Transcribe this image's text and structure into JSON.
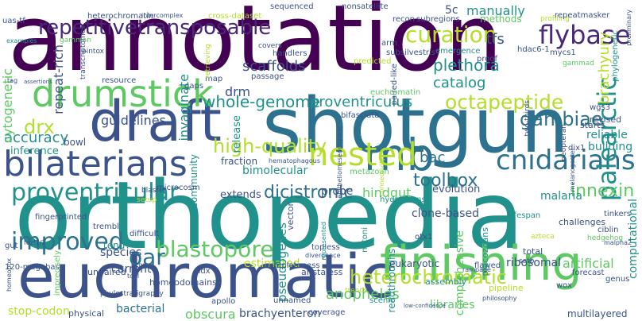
{
  "palette": {
    "c1": "#440154",
    "c2": "#3b528b",
    "c3": "#21918c",
    "c4": "#5ec962",
    "c5": "#b5de2b",
    "c6": "#2c728e",
    "c7": "#482878"
  },
  "words": [
    {
      "text": "annotation",
      "color": "#440154"
    },
    {
      "text": "orthopedia",
      "color": "#21918c"
    },
    {
      "text": "shotgun",
      "color": "#2c728e"
    },
    {
      "text": "draft",
      "color": "#3b528b"
    },
    {
      "text": "euchromatic",
      "color": "#3b528b"
    },
    {
      "text": "finishing",
      "color": "#5ec962"
    },
    {
      "text": "drumstick",
      "color": "#5ec962"
    },
    {
      "text": "bilaterians",
      "color": "#3b528b"
    },
    {
      "text": "mb",
      "color": "#2c728e"
    },
    {
      "text": "nested",
      "color": "#b5de2b"
    },
    {
      "text": "cnidarians",
      "color": "#2c728e"
    },
    {
      "text": "repetitivetransposable",
      "color": "#482878"
    },
    {
      "text": "curation",
      "color": "#b5de2b"
    },
    {
      "text": "flybase",
      "color": "#482878"
    },
    {
      "text": "proventricular",
      "color": "#21918c"
    },
    {
      "text": "palearctic",
      "color": "#21918c"
    },
    {
      "text": "gambiae",
      "color": "#2c728e"
    },
    {
      "text": "high-quality",
      "color": "#b5de2b"
    },
    {
      "text": "octapeptide",
      "color": "#b5de2b"
    },
    {
      "text": "improved",
      "color": "#2c728e"
    },
    {
      "text": "blastopore",
      "color": "#5ec962"
    },
    {
      "text": "heterochromatic",
      "color": "#b5de2b"
    },
    {
      "text": "oar",
      "color": "#2c728e"
    },
    {
      "text": "toolbox",
      "color": "#2c728e"
    },
    {
      "text": "dicistronic",
      "color": "#2c728e"
    },
    {
      "text": "innexin",
      "color": "#5ec962"
    },
    {
      "text": "whole-genome",
      "color": "#21918c"
    },
    {
      "text": "proventriculus",
      "color": "#21918c"
    },
    {
      "text": "accuracy",
      "color": "#21918c"
    },
    {
      "text": "scaffolds",
      "color": "#3b528b"
    },
    {
      "text": "plethora",
      "color": "#21918c"
    },
    {
      "text": "catalog",
      "color": "#21918c"
    },
    {
      "text": "drx",
      "color": "#b5de2b"
    },
    {
      "text": "drm",
      "color": "#3b528b"
    },
    {
      "text": "tfs",
      "color": "#3b528b"
    },
    {
      "text": "invaginate",
      "color": "#21918c"
    },
    {
      "text": "cytogenetic",
      "color": "#5ec962"
    },
    {
      "text": "repeat-rich",
      "color": "#3b528b"
    },
    {
      "text": "brachyury",
      "color": "#b5de2b"
    },
    {
      "text": "manually",
      "color": "#21918c"
    },
    {
      "text": "methods",
      "color": "#5ec962"
    },
    {
      "text": "5c",
      "color": "#3b528b"
    },
    {
      "text": "bac",
      "color": "#2c728e"
    },
    {
      "text": "reliable",
      "color": "#21918c"
    },
    {
      "text": "building",
      "color": "#21918c"
    },
    {
      "text": "malaria",
      "color": "#21918c"
    },
    {
      "text": "evolution",
      "color": "#3b528b"
    },
    {
      "text": "hindgut",
      "color": "#5ec962"
    },
    {
      "text": "clone-based",
      "color": "#3b528b"
    },
    {
      "text": "probe",
      "color": "#3b528b"
    },
    {
      "text": "bimolecular",
      "color": "#21918c"
    },
    {
      "text": "inference",
      "color": "#21918c"
    },
    {
      "text": "guidelines",
      "color": "#3b528b"
    },
    {
      "text": "bowl",
      "color": "#3b528b"
    },
    {
      "text": "fraction",
      "color": "#3b528b"
    },
    {
      "text": "extends",
      "color": "#3b528b"
    },
    {
      "text": "community",
      "color": "#21918c"
    },
    {
      "text": "species",
      "color": "#3b528b"
    },
    {
      "text": "current",
      "color": "#3b528b"
    },
    {
      "text": "tend",
      "color": "#21918c"
    },
    {
      "text": "estimated",
      "color": "#b5de2b"
    },
    {
      "text": "pseudogenes",
      "color": "#21918c"
    },
    {
      "text": "anopheles",
      "color": "#5ec962"
    },
    {
      "text": "bacterial",
      "color": "#2c728e"
    },
    {
      "text": "obscura",
      "color": "#5ec962"
    },
    {
      "text": "brachyenteron",
      "color": "#3b528b"
    },
    {
      "text": "libraries",
      "color": "#5ec962"
    },
    {
      "text": "comprehensive",
      "color": "#5ec962"
    },
    {
      "text": "readthroughs",
      "color": "#21918c"
    },
    {
      "text": "ribosomal",
      "color": "#3b528b"
    },
    {
      "text": "artificial",
      "color": "#5ec962"
    },
    {
      "text": "eukaryotic",
      "color": "#3b528b"
    },
    {
      "text": "stop-codon",
      "color": "#b5de2b"
    },
    {
      "text": "physical",
      "color": "#3b528b"
    },
    {
      "text": "unpaired",
      "color": "#3b528b"
    },
    {
      "text": "homeodomains",
      "color": "#3b528b"
    },
    {
      "text": "aristaless",
      "color": "#3b528b"
    },
    {
      "text": "completeness",
      "color": "#3b528b"
    },
    {
      "text": "computational",
      "color": "#21918c"
    },
    {
      "text": "multilayered",
      "color": "#3b528b"
    },
    {
      "text": "120-megabase",
      "color": "#3b528b"
    },
    {
      "text": "heterochromatin",
      "color": "#3b528b"
    },
    {
      "text": "cross-dataset",
      "color": "#b5de2b"
    },
    {
      "text": "fingerprinted",
      "color": "#3b528b"
    },
    {
      "text": "release",
      "color": "#21918c"
    },
    {
      "text": "topless",
      "color": "#3b528b"
    },
    {
      "text": "flawed",
      "color": "#3b528b"
    },
    {
      "text": "otx1",
      "color": "#3b528b"
    },
    {
      "text": "total",
      "color": "#3b528b"
    },
    {
      "text": "satb",
      "color": "#3b528b"
    },
    {
      "text": "wox",
      "color": "#3b528b"
    },
    {
      "text": "genus",
      "color": "#3b528b"
    },
    {
      "text": "forecast",
      "color": "#3b528b"
    },
    {
      "text": "assembly",
      "color": "#21918c"
    },
    {
      "text": "pipeline",
      "color": "#b5de2b"
    },
    {
      "text": "scenic",
      "color": "#21918c"
    },
    {
      "text": "trends",
      "color": "#b5de2b"
    },
    {
      "text": "coverage",
      "color": "#3b528b"
    },
    {
      "text": "unnamed",
      "color": "#3b528b"
    },
    {
      "text": "apollo",
      "color": "#3b528b"
    },
    {
      "text": "ndx",
      "color": "#3b528b"
    },
    {
      "text": "gut",
      "color": "#3b528b"
    },
    {
      "text": "vector",
      "color": "#3b528b"
    },
    {
      "text": "hedgehog",
      "color": "#5ec962"
    },
    {
      "text": "revised",
      "color": "#3b528b"
    },
    {
      "text": "starts",
      "color": "#3b528b"
    },
    {
      "text": "wgs3",
      "color": "#3b528b"
    },
    {
      "text": "dix1",
      "color": "#3b528b"
    },
    {
      "text": "lifespan",
      "color": "#21918c"
    },
    {
      "text": "challenges",
      "color": "#3b528b"
    },
    {
      "text": "tinkers",
      "color": "#3b528b"
    },
    {
      "text": "ciblin",
      "color": "#3b528b"
    },
    {
      "text": "placozoans",
      "color": "#21918c"
    },
    {
      "text": "hydrozoans",
      "color": "#21918c"
    },
    {
      "text": "metazoan",
      "color": "#5ec962"
    },
    {
      "text": "connectivity",
      "color": "#b5de2b"
    },
    {
      "text": "mitoni",
      "color": "#21918c"
    },
    {
      "text": "neopteran",
      "color": "#3b528b"
    },
    {
      "text": "two-thirds",
      "color": "#3b528b"
    },
    {
      "text": "melanogaster",
      "color": "#3b528b"
    },
    {
      "text": "sequenced",
      "color": "#3b528b"
    },
    {
      "text": "nonsatellite",
      "color": "#3b528b"
    },
    {
      "text": "arm",
      "color": "#3b528b"
    },
    {
      "text": "recon",
      "color": "#3b528b"
    },
    {
      "text": "subregions",
      "color": "#3b528b"
    },
    {
      "text": "profiling",
      "color": "#b5de2b"
    },
    {
      "text": "repeatmasker",
      "color": "#3b528b"
    },
    {
      "text": "hdac6-1",
      "color": "#3b528b"
    },
    {
      "text": "mycs1",
      "color": "#3b528b"
    },
    {
      "text": "gammad",
      "color": "#5ec962"
    },
    {
      "text": "proof",
      "color": "#3b528b"
    },
    {
      "text": "emergence",
      "color": "#21918c"
    },
    {
      "text": "subsilvestris",
      "color": "#3b528b"
    },
    {
      "text": "paired-like",
      "color": "#3b528b"
    },
    {
      "text": "handlers",
      "color": "#3b528b"
    },
    {
      "text": "covers",
      "color": "#3b528b"
    },
    {
      "text": "passage",
      "color": "#3b528b"
    },
    {
      "text": "predicted",
      "color": "#b5de2b"
    },
    {
      "text": "euchromatin",
      "color": "#5ec962"
    },
    {
      "text": "bifasciata",
      "color": "#3b528b"
    },
    {
      "text": "gaps",
      "color": "#3b528b"
    },
    {
      "text": "map",
      "color": "#3b528b"
    },
    {
      "text": "microcosm",
      "color": "#3b528b"
    },
    {
      "text": "blaster",
      "color": "#3b528b"
    },
    {
      "text": "setup",
      "color": "#b5de2b"
    },
    {
      "text": "trembl",
      "color": "#3b528b"
    },
    {
      "text": "difficult",
      "color": "#3b528b"
    },
    {
      "text": "resource",
      "color": "#3b528b"
    },
    {
      "text": "pintox",
      "color": "#3b528b"
    },
    {
      "text": "gamman",
      "color": "#5ec962"
    },
    {
      "text": "uas-tf",
      "color": "#3b528b"
    },
    {
      "text": "intercomplex",
      "color": "#3b528b"
    },
    {
      "text": "examples",
      "color": "#21918c"
    },
    {
      "text": "tag",
      "color": "#3b528b"
    },
    {
      "text": "assertions",
      "color": "#3b528b"
    },
    {
      "text": "imprecisely",
      "color": "#5ec962"
    },
    {
      "text": "homeobox",
      "color": "#3b528b"
    },
    {
      "text": "phylostratigraphy",
      "color": "#3b528b"
    },
    {
      "text": "tool",
      "color": "#3b528b"
    },
    {
      "text": "retrieving",
      "color": "#b5de2b"
    },
    {
      "text": "transcriptomes",
      "color": "#3b528b"
    },
    {
      "text": "phylogenetic",
      "color": "#21918c"
    },
    {
      "text": "preliminary",
      "color": "#3b528b"
    },
    {
      "text": "divergence",
      "color": "#3b528b"
    },
    {
      "text": "malpha2",
      "color": "#3b528b"
    },
    {
      "text": "rampage",
      "color": "#3b528b"
    },
    {
      "text": "epitheliomesenchymal",
      "color": "#3b528b"
    },
    {
      "text": "azteca",
      "color": "#b5de2b"
    },
    {
      "text": "philosophy",
      "color": "#3b528b"
    },
    {
      "text": "low-confidence",
      "color": "#3b528b"
    },
    {
      "text": "hematophagous",
      "color": "#3b528b"
    },
    {
      "text": "represented",
      "color": "#21918c"
    },
    {
      "text": "cgp",
      "color": "#3b528b"
    },
    {
      "text": "fezf1/2",
      "color": "#3b528b"
    }
  ]
}
